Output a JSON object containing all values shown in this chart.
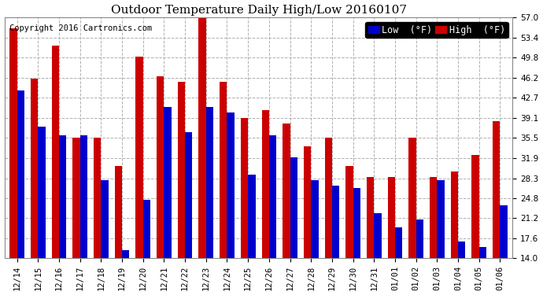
{
  "title": "Outdoor Temperature Daily High/Low 20160107",
  "copyright": "Copyright 2016 Cartronics.com",
  "legend_low": "Low  (°F)",
  "legend_high": "High  (°F)",
  "dates": [
    "12/14",
    "12/15",
    "12/16",
    "12/17",
    "12/18",
    "12/19",
    "12/20",
    "12/21",
    "12/22",
    "12/23",
    "12/24",
    "12/25",
    "12/26",
    "12/27",
    "12/28",
    "12/29",
    "12/30",
    "12/31",
    "01/01",
    "01/02",
    "01/03",
    "01/04",
    "01/05",
    "01/06"
  ],
  "high_values": [
    55.0,
    46.0,
    52.0,
    35.5,
    35.5,
    30.5,
    50.0,
    46.5,
    45.5,
    57.0,
    45.5,
    39.0,
    40.5,
    38.0,
    34.0,
    35.5,
    30.5,
    28.5,
    28.5,
    35.5,
    28.5,
    29.5,
    32.5,
    38.5
  ],
  "low_values": [
    44.0,
    37.5,
    36.0,
    36.0,
    28.0,
    15.5,
    24.5,
    41.0,
    36.5,
    41.0,
    40.0,
    29.0,
    36.0,
    32.0,
    28.0,
    27.0,
    26.5,
    22.0,
    19.5,
    21.0,
    28.0,
    17.0,
    16.0,
    23.5
  ],
  "bar_color_low": "#0000cc",
  "bar_color_high": "#cc0000",
  "bg_color": "#ffffff",
  "grid_color": "#b0b0b0",
  "yticks": [
    14.0,
    17.6,
    21.2,
    24.8,
    28.3,
    31.9,
    35.5,
    39.1,
    42.7,
    46.2,
    49.8,
    53.4,
    57.0
  ],
  "ylim": [
    14.0,
    57.0
  ],
  "ymin": 14.0,
  "title_fontsize": 11,
  "copyright_fontsize": 7.5,
  "tick_fontsize": 7.5,
  "legend_fontsize": 8.5,
  "bar_width": 0.35
}
